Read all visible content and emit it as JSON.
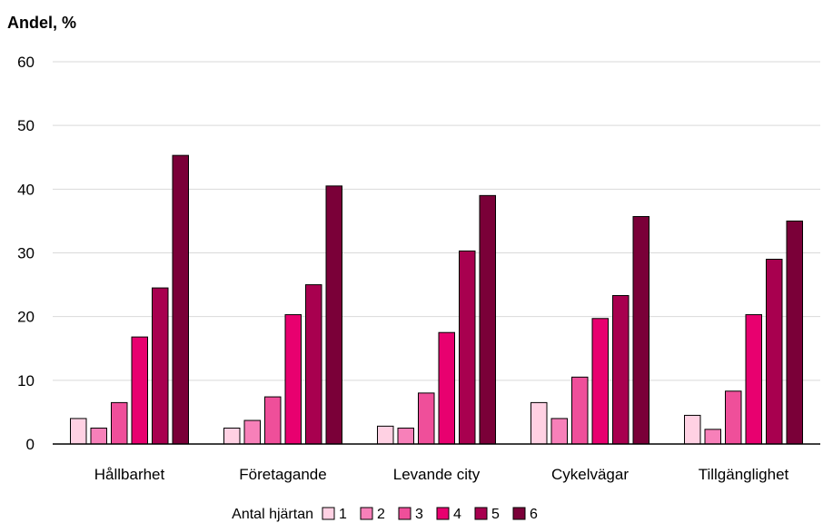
{
  "chart_data": {
    "type": "bar",
    "ylabel": "Andel, %",
    "ylim": [
      0,
      60
    ],
    "yticks": [
      0,
      10,
      20,
      30,
      40,
      50,
      60
    ],
    "grid": true,
    "categories": [
      "Hållbarhet",
      "Företagande",
      "Levande city",
      "Cykelvägar",
      "Tillgänglighet"
    ],
    "legend_title": "Antal hjärtan",
    "legend_position": "bottom",
    "series": [
      {
        "name": "1",
        "color": "#ffd1e3",
        "values": [
          4.0,
          2.5,
          2.8,
          6.5,
          4.5
        ]
      },
      {
        "name": "2",
        "color": "#f780b9",
        "values": [
          2.5,
          3.7,
          2.5,
          4.0,
          2.3
        ]
      },
      {
        "name": "3",
        "color": "#ef4f9a",
        "values": [
          6.5,
          7.4,
          8.0,
          10.5,
          8.3
        ]
      },
      {
        "name": "4",
        "color": "#e8006f",
        "values": [
          16.8,
          20.3,
          17.5,
          19.7,
          20.3
        ]
      },
      {
        "name": "5",
        "color": "#a8004f",
        "values": [
          24.5,
          25.0,
          30.3,
          23.3,
          29.0
        ]
      },
      {
        "name": "6",
        "color": "#7a0038",
        "values": [
          45.3,
          40.5,
          39.0,
          35.7,
          35.0
        ]
      }
    ]
  }
}
